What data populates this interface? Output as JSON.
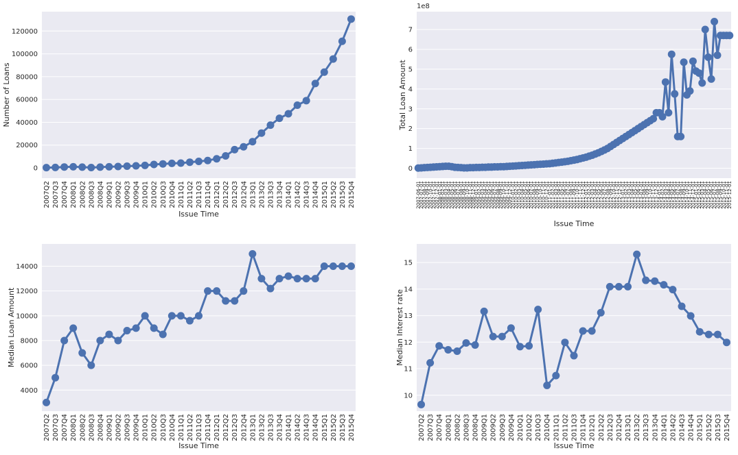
{
  "chart_data": [
    {
      "type": "line",
      "xlabel": "Issue Time",
      "ylabel": "Number of Loans",
      "ylim": [
        -9000,
        137000
      ],
      "yticks": [
        0,
        20000,
        40000,
        60000,
        80000,
        100000,
        120000
      ],
      "ytick_labels": [
        "0",
        "20000",
        "40000",
        "60000",
        "80000",
        "100000",
        "120000"
      ],
      "grid": true,
      "categories": [
        "2007Q2",
        "2007Q3",
        "2007Q4",
        "2008Q1",
        "2008Q2",
        "2008Q3",
        "2008Q4",
        "2009Q1",
        "2009Q2",
        "2009Q3",
        "2009Q4",
        "2010Q1",
        "2010Q2",
        "2010Q3",
        "2010Q4",
        "2011Q1",
        "2011Q2",
        "2011Q3",
        "2011Q4",
        "2012Q1",
        "2012Q2",
        "2012Q3",
        "2012Q4",
        "2013Q1",
        "2013Q2",
        "2013Q3",
        "2013Q4",
        "2014Q1",
        "2014Q2",
        "2014Q3",
        "2014Q4",
        "2015Q1",
        "2015Q2",
        "2015Q3",
        "2015Q4"
      ],
      "values": [
        250,
        380,
        800,
        1000,
        700,
        300,
        700,
        1000,
        1200,
        1500,
        1800,
        2200,
        3000,
        3500,
        4000,
        4200,
        5000,
        5700,
        6500,
        8000,
        10500,
        16000,
        18500,
        23000,
        30500,
        37500,
        43500,
        47500,
        55000,
        59000,
        74000,
        84000,
        95500,
        111000,
        130500
      ]
    },
    {
      "type": "line",
      "xlabel": "Issue Time",
      "ylabel": "Total Loan Amount",
      "offset_text": "1e8",
      "ylim": [
        -0.5,
        7.9
      ],
      "yticks": [
        0,
        1,
        2,
        3,
        4,
        5,
        6,
        7
      ],
      "ytick_labels": [
        "0",
        "1",
        "2",
        "3",
        "4",
        "5",
        "6",
        "7"
      ],
      "grid": true,
      "categories": [
        "2007-06-01",
        "2007-07-01",
        "2007-08-01",
        "2007-09-01",
        "2007-10-01",
        "2007-11-01",
        "2007-12-01",
        "2008-01-01",
        "2008-02-01",
        "2008-03-01",
        "2008-04-01",
        "2008-05-01",
        "2008-06-01",
        "2008-07-01",
        "2008-08-01",
        "2008-09-01",
        "2008-10-01",
        "2008-11-01",
        "2008-12-01",
        "2009-01-01",
        "2009-02-01",
        "2009-03-01",
        "2009-04-01",
        "2009-05-01",
        "2009-06-01",
        "2009-07-01",
        "2009-08-01",
        "2009-09-01",
        "2009-10-01",
        "2009-11-01",
        "2009-12-01",
        "2010-01-01",
        "2010-02-01",
        "2010-03-01",
        "2010-04-01",
        "2010-05-01",
        "2010-06-01",
        "2010-07-01",
        "2010-08-01",
        "2010-09-01",
        "2010-10-01",
        "2010-11-01",
        "2010-12-01",
        "2011-01-01",
        "2011-02-01",
        "2011-03-01",
        "2011-04-01",
        "2011-05-01",
        "2011-06-01",
        "2011-07-01",
        "2011-08-01",
        "2011-09-01",
        "2011-10-01",
        "2011-11-01",
        "2011-12-01",
        "2012-01-01",
        "2012-02-01",
        "2012-03-01",
        "2012-04-01",
        "2012-05-01",
        "2012-06-01",
        "2012-07-01",
        "2012-08-01",
        "2012-09-01",
        "2012-10-01",
        "2012-11-01",
        "2012-12-01",
        "2013-01-01",
        "2013-02-01",
        "2013-03-01",
        "2013-04-01",
        "2013-05-01",
        "2013-06-01",
        "2013-07-01",
        "2013-08-01",
        "2013-09-01",
        "2013-10-01",
        "2013-11-01",
        "2013-12-01",
        "2014-01-01",
        "2014-02-01",
        "2014-03-01",
        "2014-04-01",
        "2014-05-01",
        "2014-06-01",
        "2014-07-01",
        "2014-08-01",
        "2014-09-01",
        "2014-10-01",
        "2014-11-01",
        "2014-12-01",
        "2015-01-01",
        "2015-02-01",
        "2015-03-01",
        "2015-04-01",
        "2015-05-01",
        "2015-06-01",
        "2015-07-01",
        "2015-08-01",
        "2015-09-01",
        "2015-10-01",
        "2015-11-01",
        "2015-12-01"
      ],
      "values": [
        0.01,
        0.02,
        0.03,
        0.04,
        0.05,
        0.06,
        0.07,
        0.08,
        0.09,
        0.1,
        0.1,
        0.08,
        0.05,
        0.04,
        0.03,
        0.02,
        0.02,
        0.03,
        0.03,
        0.04,
        0.04,
        0.05,
        0.05,
        0.06,
        0.06,
        0.07,
        0.07,
        0.08,
        0.08,
        0.09,
        0.1,
        0.11,
        0.12,
        0.13,
        0.14,
        0.15,
        0.16,
        0.17,
        0.18,
        0.19,
        0.2,
        0.21,
        0.22,
        0.23,
        0.25,
        0.27,
        0.29,
        0.31,
        0.33,
        0.35,
        0.38,
        0.41,
        0.44,
        0.48,
        0.52,
        0.56,
        0.61,
        0.66,
        0.72,
        0.78,
        0.85,
        0.92,
        1.0,
        1.1,
        1.2,
        1.3,
        1.4,
        1.5,
        1.6,
        1.7,
        1.8,
        1.9,
        2.0,
        2.1,
        2.2,
        2.3,
        2.4,
        2.5,
        2.8,
        2.8,
        2.6,
        4.35,
        2.8,
        5.75,
        3.75,
        1.6,
        1.6,
        5.35,
        3.7,
        3.9,
        5.4,
        4.9,
        4.8,
        4.3,
        7.0,
        5.6,
        4.5,
        7.4,
        5.7,
        6.7,
        6.7,
        6.7,
        6.7
      ]
    },
    {
      "type": "line",
      "xlabel": "Issue Time",
      "ylabel": "Median Loan Amount",
      "ylim": [
        2300,
        15800
      ],
      "yticks": [
        4000,
        6000,
        8000,
        10000,
        12000,
        14000
      ],
      "ytick_labels": [
        "4000",
        "6000",
        "8000",
        "10000",
        "12000",
        "14000"
      ],
      "grid": true,
      "categories": [
        "2007Q2",
        "2007Q3",
        "2007Q4",
        "2008Q1",
        "2008Q2",
        "2008Q3",
        "2008Q4",
        "2009Q1",
        "2009Q2",
        "2009Q3",
        "2009Q4",
        "2010Q1",
        "2010Q2",
        "2010Q3",
        "2010Q4",
        "2011Q1",
        "2011Q2",
        "2011Q3",
        "2011Q4",
        "2012Q1",
        "2012Q2",
        "2012Q3",
        "2012Q4",
        "2013Q1",
        "2013Q2",
        "2013Q3",
        "2013Q4",
        "2014Q1",
        "2014Q2",
        "2014Q3",
        "2014Q4",
        "2015Q1",
        "2015Q2",
        "2015Q3",
        "2015Q4"
      ],
      "values": [
        3000,
        5000,
        8000,
        9000,
        7000,
        6000,
        8000,
        8500,
        8000,
        8800,
        9000,
        10000,
        9000,
        8500,
        10000,
        10000,
        9600,
        10000,
        12000,
        12000,
        11200,
        11200,
        12000,
        15000,
        13000,
        12200,
        13000,
        13200,
        13000,
        13000,
        13000,
        14000,
        14000,
        14000,
        14000
      ]
    },
    {
      "type": "line",
      "xlabel": "Issue Time",
      "ylabel": "Median Interest rate",
      "ylim": [
        9.4,
        15.7
      ],
      "yticks": [
        10,
        11,
        12,
        13,
        14,
        15
      ],
      "ytick_labels": [
        "10",
        "11",
        "12",
        "13",
        "14",
        "15"
      ],
      "grid": true,
      "categories": [
        "2007Q2",
        "2007Q3",
        "2007Q4",
        "2008Q1",
        "2008Q2",
        "2008Q3",
        "2008Q4",
        "2009Q1",
        "2009Q2",
        "2009Q3",
        "2009Q4",
        "2010Q1",
        "2010Q2",
        "2010Q3",
        "2010Q4",
        "2011Q1",
        "2011Q2",
        "2011Q3",
        "2011Q4",
        "2012Q1",
        "2012Q2",
        "2012Q3",
        "2012Q4",
        "2013Q1",
        "2013Q2",
        "2013Q3",
        "2013Q4",
        "2014Q1",
        "2014Q2",
        "2014Q3",
        "2014Q4",
        "2015Q1",
        "2015Q2",
        "2015Q3",
        "2015Q4"
      ],
      "values": [
        9.65,
        11.22,
        11.86,
        11.71,
        11.66,
        11.97,
        11.89,
        13.16,
        12.21,
        12.21,
        12.53,
        11.83,
        11.86,
        13.23,
        10.37,
        10.74,
        11.99,
        11.49,
        12.42,
        12.42,
        13.11,
        14.09,
        14.09,
        14.09,
        15.31,
        14.33,
        14.3,
        14.16,
        13.98,
        13.35,
        12.99,
        12.39,
        12.29,
        12.29,
        11.99
      ]
    }
  ]
}
